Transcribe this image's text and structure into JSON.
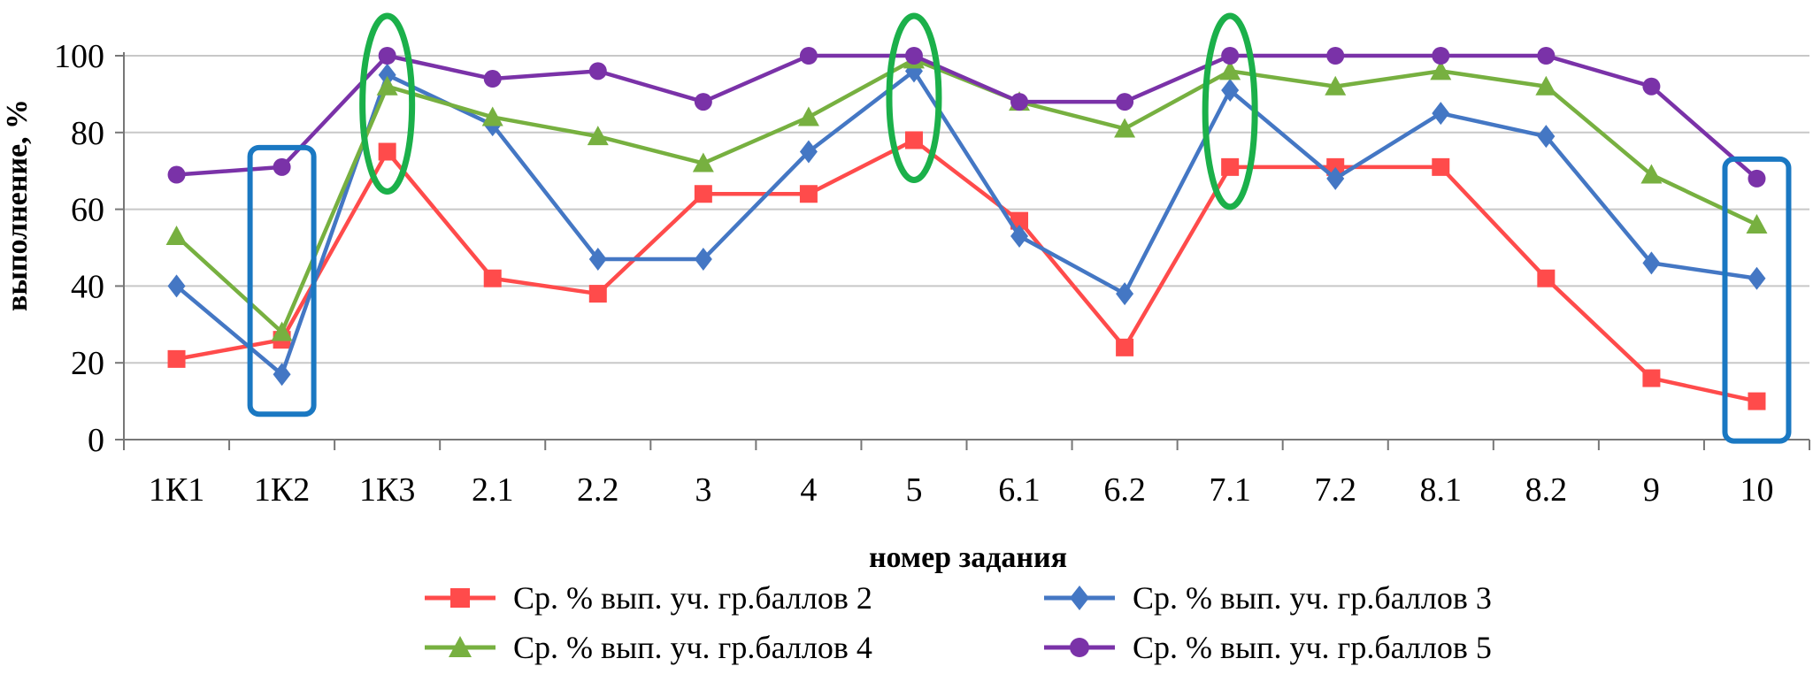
{
  "chart_data": {
    "type": "line",
    "xlabel": "номер задания",
    "ylabel": "выполнение, %",
    "ylim": [
      0,
      100
    ],
    "yticks": [
      0,
      20,
      40,
      60,
      80,
      100
    ],
    "grid": "horizontal",
    "legend_position": "bottom",
    "categories": [
      "1К1",
      "1К2",
      "1К3",
      "2.1",
      "2.2",
      "3",
      "4",
      "5",
      "6.1",
      "6.2",
      "7.1",
      "7.2",
      "8.1",
      "8.2",
      "9",
      "10"
    ],
    "series": [
      {
        "name": "Ср. % вып. уч. гр.баллов 2",
        "color": "#ff4b4b",
        "marker": "square",
        "values": [
          21,
          26,
          75,
          42,
          38,
          64,
          64,
          78,
          57,
          24,
          71,
          71,
          71,
          42,
          16,
          10
        ]
      },
      {
        "name": "Ср. % вып. уч. гр.баллов 3",
        "color": "#4477c4",
        "marker": "diamond",
        "values": [
          40,
          17,
          95,
          82,
          47,
          47,
          75,
          96,
          53,
          38,
          91,
          68,
          85,
          79,
          46,
          42
        ]
      },
      {
        "name": "Ср. % вып. уч. гр.баллов 4",
        "color": "#77b040",
        "marker": "triangle",
        "values": [
          53,
          28,
          92,
          84,
          79,
          72,
          84,
          99,
          88,
          81,
          96,
          92,
          96,
          92,
          69,
          56
        ]
      },
      {
        "name": "Ср. % вып. уч. гр.баллов 5",
        "color": "#7a32a8",
        "marker": "circle",
        "values": [
          69,
          71,
          100,
          94,
          96,
          88,
          100,
          100,
          88,
          88,
          100,
          100,
          100,
          100,
          92,
          68
        ]
      }
    ],
    "highlights": [
      {
        "shape": "rounded-rect",
        "color": "#1a78c2",
        "category": "1К2"
      },
      {
        "shape": "ellipse",
        "color": "#1bb04a",
        "category": "1К3"
      },
      {
        "shape": "ellipse",
        "color": "#1bb04a",
        "category": "5"
      },
      {
        "shape": "ellipse",
        "color": "#1bb04a",
        "category": "7.1"
      },
      {
        "shape": "rounded-rect",
        "color": "#1a78c2",
        "category": "10"
      }
    ]
  }
}
